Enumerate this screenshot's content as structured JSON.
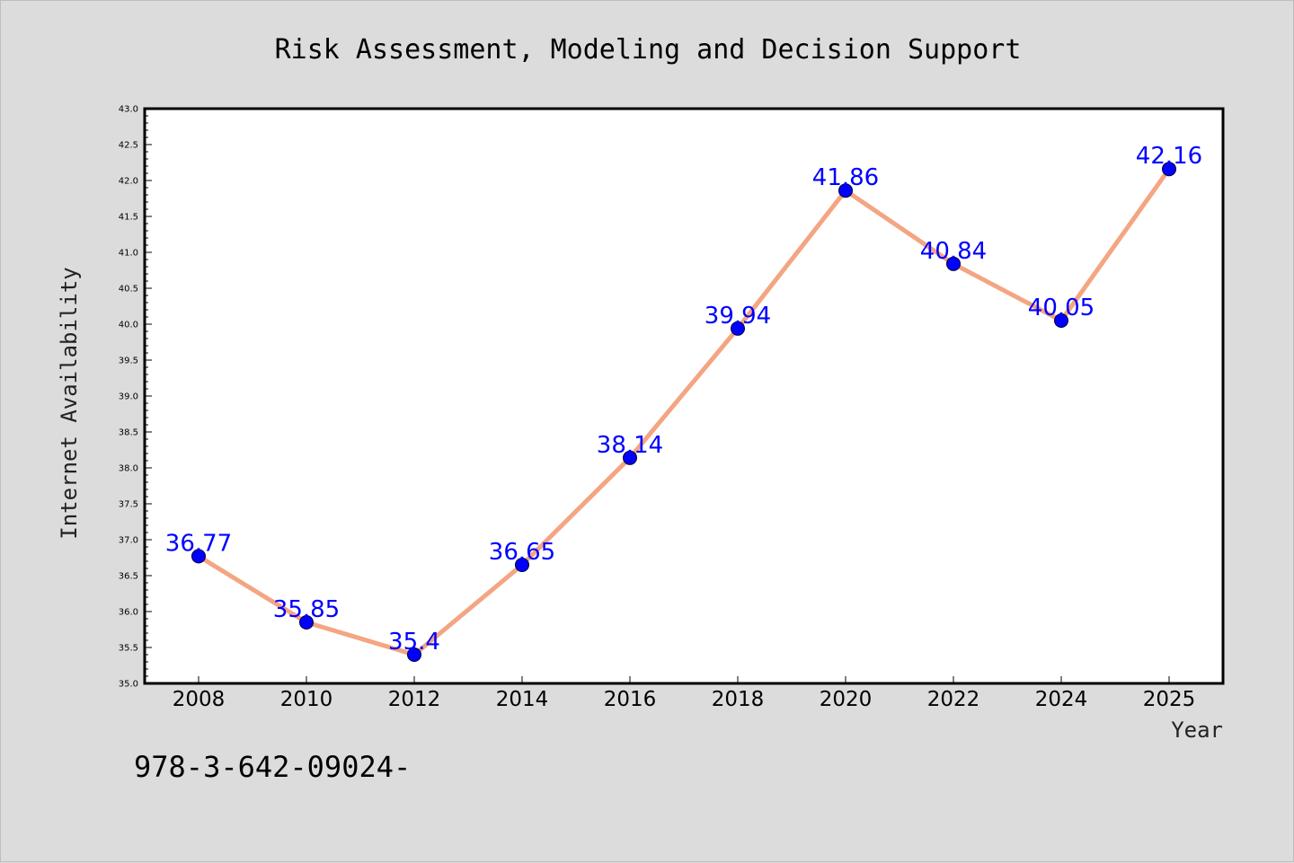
{
  "chart_data": {
    "type": "line",
    "title": "Risk Assessment, Modeling and Decision Support",
    "xlabel": "Year",
    "ylabel": "Internet Availability",
    "x": [
      "2008",
      "2010",
      "2012",
      "2014",
      "2016",
      "2018",
      "2020",
      "2022",
      "2024",
      "2025"
    ],
    "series": [
      {
        "values": [
          36.77,
          35.85,
          35.4,
          36.65,
          38.14,
          39.94,
          41.86,
          40.84,
          40.05,
          42.16
        ]
      }
    ],
    "data_labels": [
      "36.77",
      "35.85",
      "35.4",
      "36.65",
      "38.14",
      "39.94",
      "41.86",
      "40.84",
      "40.05",
      "42.16"
    ],
    "ylim": [
      35.0,
      43.0
    ],
    "ytick_step": 0.5,
    "ytick_labels": [
      "35.0",
      "35.5",
      "36.0",
      "36.5",
      "37.0",
      "37.5",
      "38.0",
      "38.5",
      "39.0",
      "39.5",
      "40.0",
      "40.5",
      "41.0",
      "41.5",
      "42.0",
      "42.5",
      "43.0"
    ],
    "grid": false,
    "line_color": "#f4a582",
    "marker_color": "#0000ff",
    "label_color": "#0000ff",
    "plot_background": "#ffffff",
    "figure_background": "#dcdcdc"
  },
  "footnote": "978-3-642-09024-"
}
